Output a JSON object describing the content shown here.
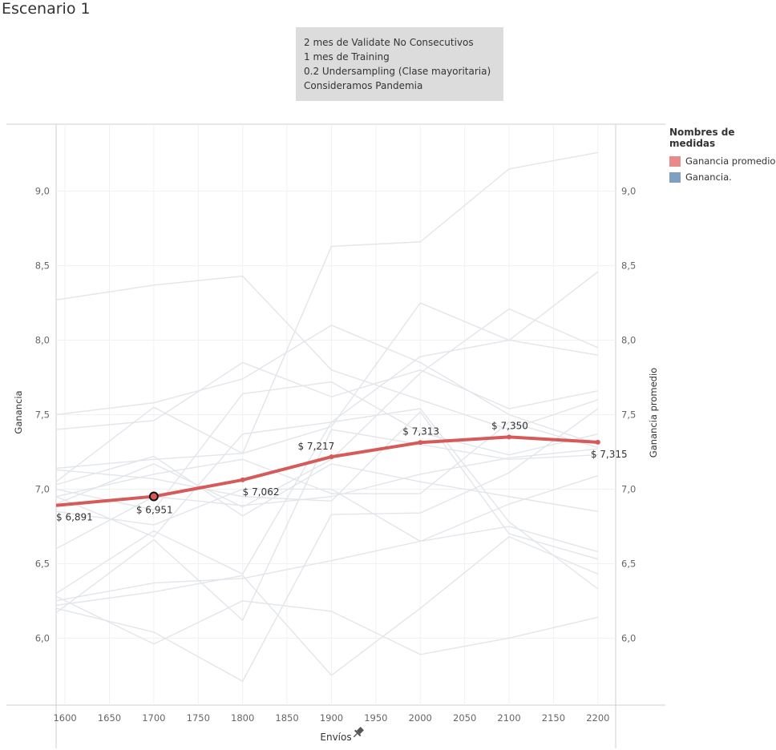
{
  "page": {
    "title": "Escenario 1",
    "note_lines": [
      "2 mes de Validate No Consecutivos",
      "1 mes de Training",
      "0.2 Undersampling (Clase mayoritaria)",
      "Consideramos Pandemia"
    ]
  },
  "legend": {
    "title": "Nombres de medidas",
    "items": [
      {
        "label": "Ganancia promedio",
        "color": "#e8898a"
      },
      {
        "label": "Ganancia.",
        "color": "#7f9fc1"
      }
    ]
  },
  "chart_data": {
    "type": "line",
    "xlabel": "Envíos",
    "ylabel_left": "Ganancia",
    "ylabel_right": "Ganancia promedio",
    "x_ticks": [
      1600,
      1650,
      1700,
      1750,
      1800,
      1850,
      1900,
      1950,
      2000,
      2050,
      2100,
      2150,
      2200
    ],
    "x_tick_labels": [
      "1600",
      "1650",
      "1700",
      "1750",
      "1800",
      "1850",
      "1900",
      "1950",
      "2000",
      "2050",
      "2100",
      "2150",
      "2200"
    ],
    "y_ticks": [
      6.0,
      6.5,
      7.0,
      7.5,
      8.0,
      8.5,
      9.0
    ],
    "y_tick_labels": [
      "6,0",
      "6,5",
      "7,0",
      "7,5",
      "8,0",
      "8,5",
      "9,0"
    ],
    "xlim": [
      1590,
      2220
    ],
    "ylim": [
      5.55,
      9.45
    ],
    "average_series": {
      "name": "Ganancia promedio",
      "color": "#d65a5a",
      "x": [
        1590,
        1700,
        1800,
        1900,
        2000,
        2100,
        2200
      ],
      "y": [
        6.891,
        6.951,
        7.062,
        7.217,
        7.313,
        7.35,
        7.315
      ],
      "labels": [
        "$ 6,891",
        "$ 6,951",
        "$ 7,062",
        "$ 7,217",
        "$ 7,313",
        "$ 7,350",
        "$ 7,315"
      ],
      "highlight_index": 1
    },
    "background_series": {
      "name": "Ganancia.",
      "color": "#e2e5ea",
      "x": [
        1590,
        1700,
        1800,
        1900,
        2000,
        2100,
        2200
      ],
      "lines": [
        [
          8.27,
          8.37,
          8.43,
          7.8,
          7.6,
          7.4,
          7.6
        ],
        [
          7.5,
          7.58,
          7.74,
          8.1,
          7.85,
          7.5,
          7.3
        ],
        [
          7.4,
          7.46,
          7.85,
          7.62,
          7.8,
          7.54,
          7.66
        ],
        [
          7.14,
          7.2,
          7.24,
          8.63,
          8.66,
          9.15,
          9.26
        ],
        [
          7.05,
          7.55,
          7.24,
          7.42,
          8.25,
          8.0,
          7.9
        ],
        [
          7.0,
          6.86,
          7.64,
          7.72,
          7.38,
          7.23,
          7.37
        ],
        [
          6.95,
          6.68,
          7.37,
          7.45,
          7.89,
          8.0,
          8.46
        ],
        [
          6.9,
          7.17,
          6.88,
          7.2,
          7.78,
          8.21,
          7.95
        ],
        [
          6.6,
          6.95,
          6.89,
          6.95,
          7.1,
          7.21,
          7.27
        ],
        [
          6.3,
          6.72,
          6.43,
          7.45,
          7.54,
          6.78,
          6.33
        ],
        [
          6.25,
          6.37,
          6.4,
          6.52,
          6.65,
          6.9,
          7.09
        ],
        [
          6.22,
          6.31,
          6.42,
          5.75,
          6.2,
          6.68,
          6.43
        ],
        [
          6.2,
          6.04,
          5.71,
          6.83,
          6.84,
          7.11,
          7.54
        ],
        [
          6.17,
          6.66,
          6.12,
          7.4,
          7.3,
          7.2,
          7.23
        ],
        [
          6.28,
          5.96,
          6.25,
          6.18,
          5.89,
          6.0,
          6.14
        ],
        [
          7.13,
          7.07,
          6.95,
          6.92,
          7.52,
          6.7,
          6.53
        ],
        [
          7.03,
          7.22,
          6.82,
          7.17,
          7.05,
          6.95,
          6.85
        ],
        [
          6.95,
          7.1,
          7.2,
          6.97,
          6.97,
          7.45,
          7.28
        ],
        [
          6.85,
          6.76,
          7.0,
          7.0,
          6.65,
          6.75,
          6.58
        ]
      ]
    }
  }
}
